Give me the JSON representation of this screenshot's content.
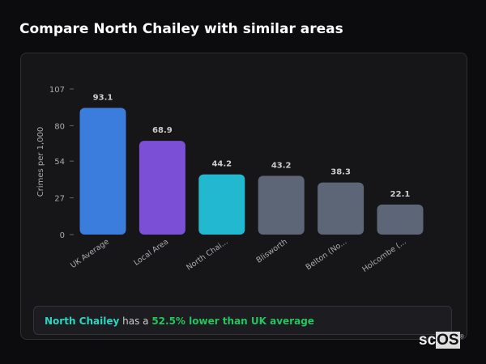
{
  "title": "Compare North Chailey with similar areas",
  "chart_data": {
    "type": "bar",
    "ylabel": "Crimes per 1,000",
    "ylim": [
      0,
      107
    ],
    "yticks": [
      0,
      27,
      54,
      80,
      107
    ],
    "categories": [
      "UK Average",
      "Local Area",
      "North Chai...",
      "Blisworth",
      "Belton (No...",
      "Holcombe (..."
    ],
    "values": [
      93.1,
      68.9,
      44.2,
      43.2,
      38.3,
      22.1
    ],
    "colors": [
      "#3b7ddd",
      "#7b4fd6",
      "#22b8cf",
      "#5c6677",
      "#5c6677",
      "#5c6677"
    ]
  },
  "summary": {
    "area": "North Chailey",
    "mid": " has a ",
    "stat": "52.5% lower than UK average"
  },
  "logo": {
    "text_a": "sc",
    "text_b": "OS",
    "mark": "®"
  }
}
